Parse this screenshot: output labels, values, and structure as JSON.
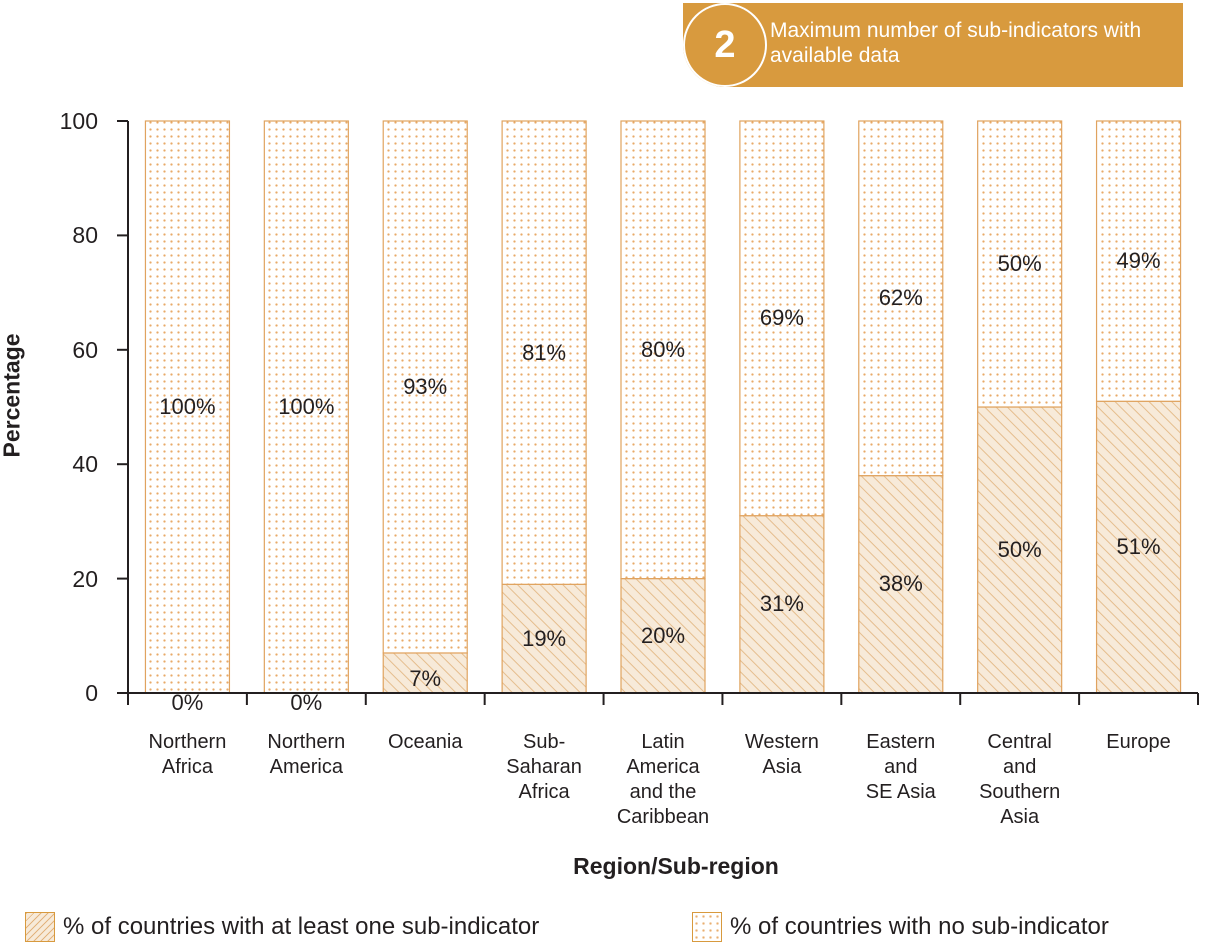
{
  "badge": {
    "number": "2",
    "text": "Maximum number of sub-indicators with available data"
  },
  "chart_data": {
    "type": "bar",
    "title": "",
    "xlabel": "Region/Sub-region",
    "ylabel": "Percentage",
    "ylim": [
      0,
      100
    ],
    "yticks": [
      0,
      20,
      40,
      60,
      80,
      100
    ],
    "categories": [
      "Northern Africa",
      "Northern America",
      "Oceania",
      "Sub-Saharan Africa",
      "Latin America and the Caribbean",
      "Western Asia",
      "Eastern and SE Asia",
      "Central and Southern Asia",
      "Europe"
    ],
    "category_label_lines": [
      [
        "Northern",
        "Africa"
      ],
      [
        "Northern",
        "America"
      ],
      [
        "Oceania"
      ],
      [
        "Sub-",
        "Saharan",
        "Africa"
      ],
      [
        "Latin",
        "America",
        "and the",
        "Caribbean"
      ],
      [
        "Western",
        "Asia"
      ],
      [
        "Eastern",
        "and",
        "SE Asia"
      ],
      [
        "Central",
        "and",
        "Southern",
        "Asia"
      ],
      [
        "Europe"
      ]
    ],
    "series": [
      {
        "name": "% of countries with at least one sub-indicator",
        "pattern": "hatch",
        "values": [
          0,
          0,
          7,
          19,
          20,
          31,
          38,
          50,
          51
        ],
        "labels": [
          "0%",
          "0%",
          "7%",
          "19%",
          "20%",
          "31%",
          "38%",
          "50%",
          "51%"
        ]
      },
      {
        "name": "% of countries with no sub-indicator",
        "pattern": "dot",
        "values": [
          100,
          100,
          93,
          81,
          80,
          69,
          62,
          50,
          49
        ],
        "labels": [
          "100%",
          "100%",
          "93%",
          "81%",
          "80%",
          "69%",
          "62%",
          "50%",
          "49%"
        ]
      }
    ],
    "colors": {
      "accent": "#d89a3e",
      "bar_outline": "#e0a35f",
      "hatch_fill": "#f7ead9",
      "hatch_line": "#d6964d",
      "dot": "#e8aa68",
      "axis": "#231f20",
      "text": "#231f20"
    },
    "grid": false,
    "legend_position": "bottom"
  }
}
